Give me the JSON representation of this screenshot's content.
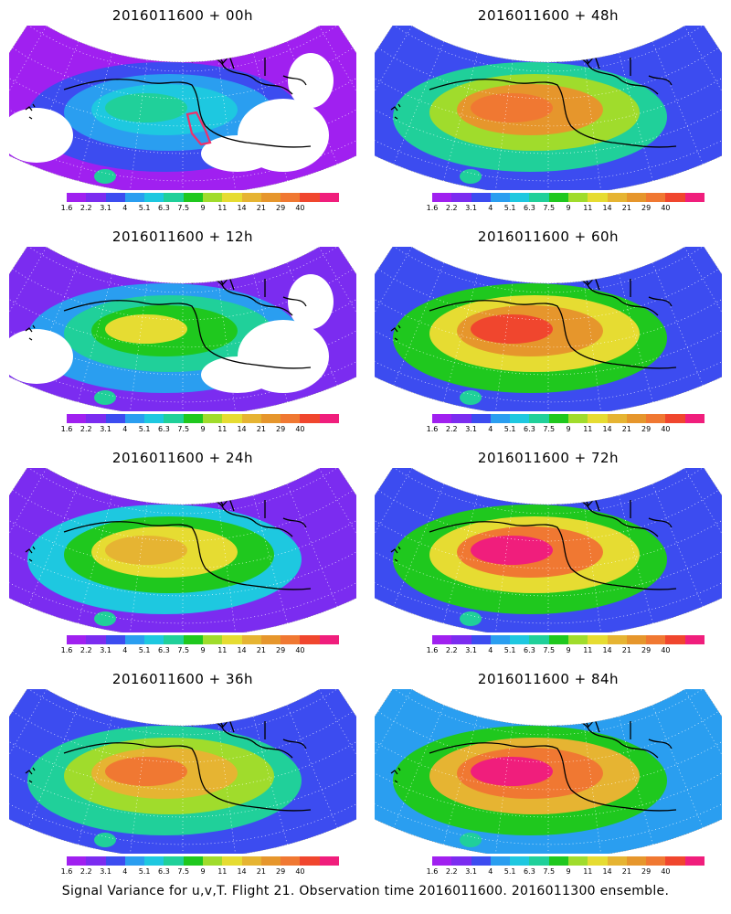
{
  "panels": [
    {
      "title": "2016011600 + 00h",
      "level": 0,
      "pink_polygon": true
    },
    {
      "title": "2016011600 + 48h",
      "level": 0.62,
      "pink_polygon": false
    },
    {
      "title": "2016011600 + 12h",
      "level": 0.28,
      "pink_polygon": false
    },
    {
      "title": "2016011600 + 60h",
      "level": 0.68,
      "pink_polygon": false
    },
    {
      "title": "2016011600 + 24h",
      "level": 0.4,
      "pink_polygon": false
    },
    {
      "title": "2016011600 + 72h",
      "level": 0.75,
      "pink_polygon": false
    },
    {
      "title": "2016011600 + 36h",
      "level": 0.55,
      "pink_polygon": false
    },
    {
      "title": "2016011600 + 84h",
      "level": 0.8,
      "pink_polygon": false
    }
  ],
  "colorbar": {
    "colors": [
      "#a020f0",
      "#7b2cf0",
      "#3c4cf0",
      "#2a9ef0",
      "#1ec8e0",
      "#20d09a",
      "#1fc81e",
      "#a0dc2c",
      "#e6dc32",
      "#e6b432",
      "#e6962c",
      "#f07832",
      "#f0462e",
      "#f01e7c"
    ],
    "labels": [
      "1.6",
      "2.2",
      "3.1",
      "4",
      "5.1",
      "6.3",
      "7.5",
      "9",
      "11",
      "14",
      "21",
      "29",
      "40"
    ]
  },
  "caption": "Signal Variance for u,v,T. Flight 21. Observation time 2016011600. 2016011300 ensemble."
}
